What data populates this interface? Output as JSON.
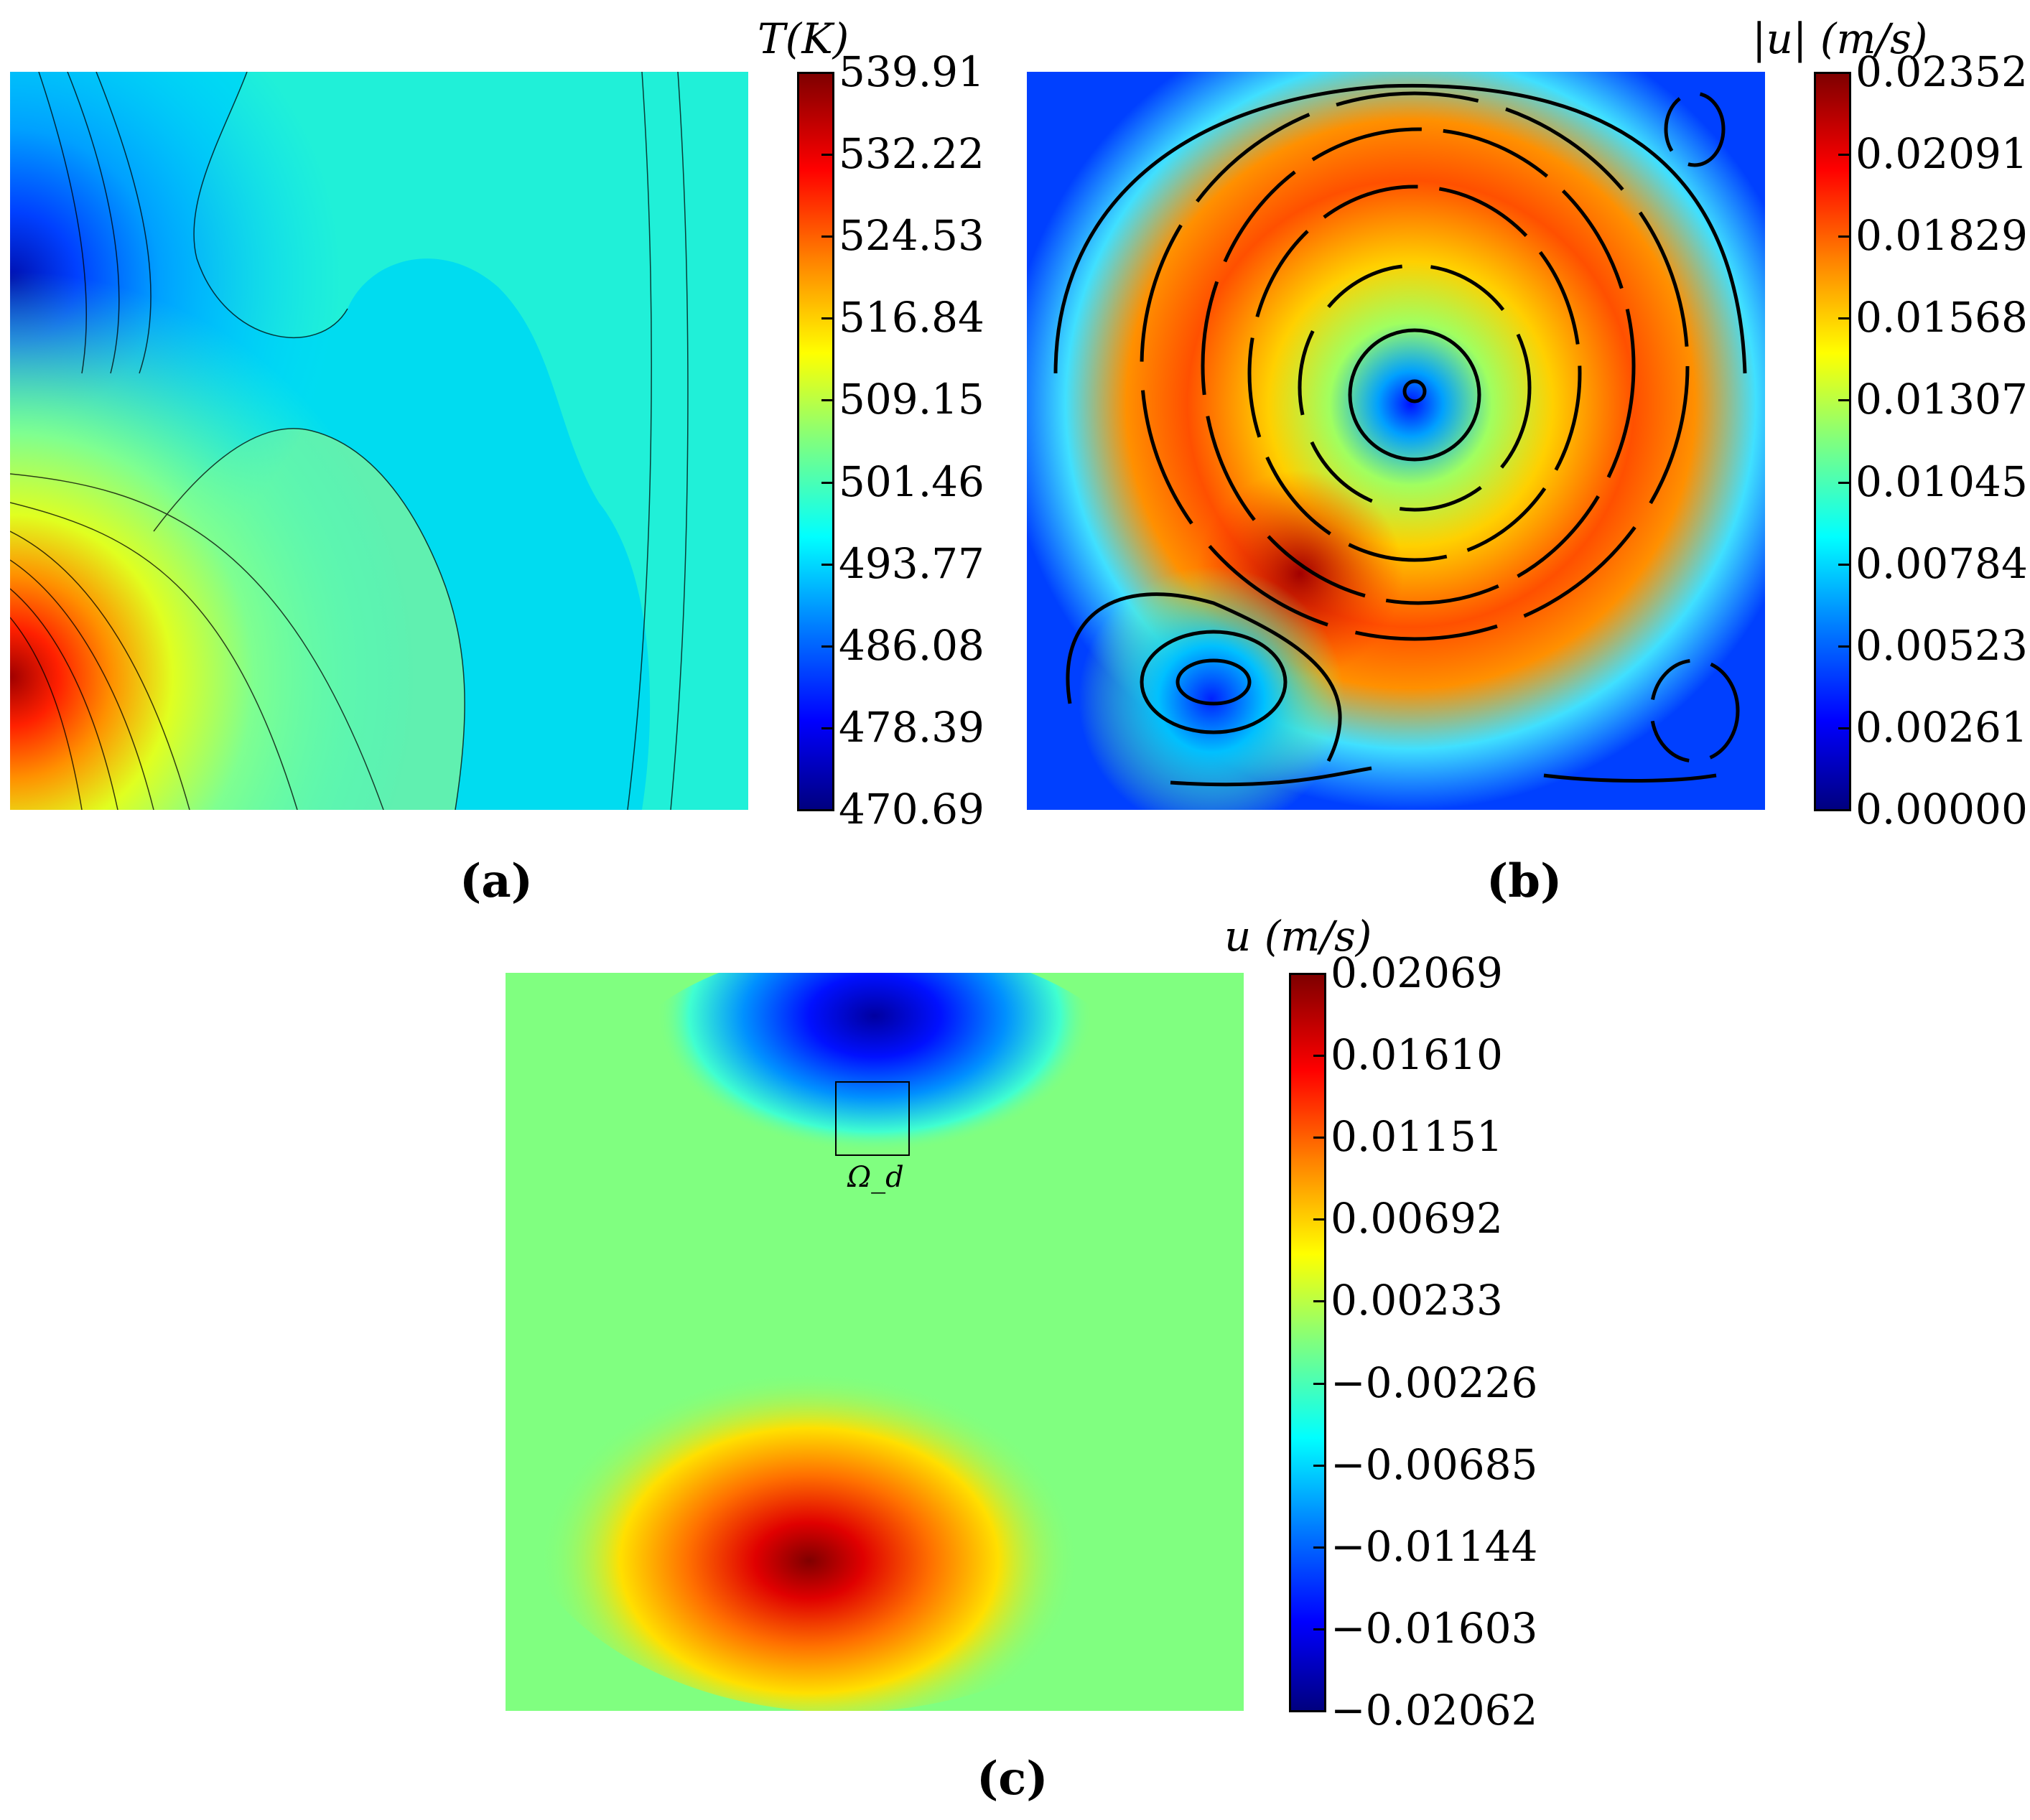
{
  "chart_data": [
    {
      "type": "heatmap",
      "panel_label": "(a)",
      "colorbar_title": "T(K)",
      "colorbar_ticks": [
        "539.91",
        "532.22",
        "524.53",
        "516.84",
        "509.15",
        "501.46",
        "493.77",
        "486.08",
        "478.39",
        "470.69"
      ],
      "range": [
        470.69,
        539.91
      ],
      "contours": true
    },
    {
      "type": "heatmap",
      "panel_label": "(b)",
      "colorbar_title": "|u| (m/s)",
      "colorbar_ticks": [
        "0.02352",
        "0.02091",
        "0.01829",
        "0.01568",
        "0.01307",
        "0.01045",
        "0.00784",
        "0.00523",
        "0.00261",
        "0.00000"
      ],
      "range": [
        0.0,
        0.02352
      ],
      "streamlines": true
    },
    {
      "type": "heatmap",
      "panel_label": "(c)",
      "colorbar_title": "u (m/s)",
      "colorbar_ticks": [
        "0.02069",
        "0.01610",
        "0.01151",
        "0.00692",
        "0.00233",
        "−0.00226",
        "−0.00685",
        "−0.01144",
        "−0.01603",
        "−0.02062"
      ],
      "range": [
        -0.02062,
        0.02069
      ],
      "annotation": "Ω_d"
    }
  ],
  "colors": {
    "jet": [
      "#00007f",
      "#0000ff",
      "#007fff",
      "#00ffff",
      "#7fff7f",
      "#ffff00",
      "#ff7f00",
      "#ff0000",
      "#7f0000"
    ]
  }
}
